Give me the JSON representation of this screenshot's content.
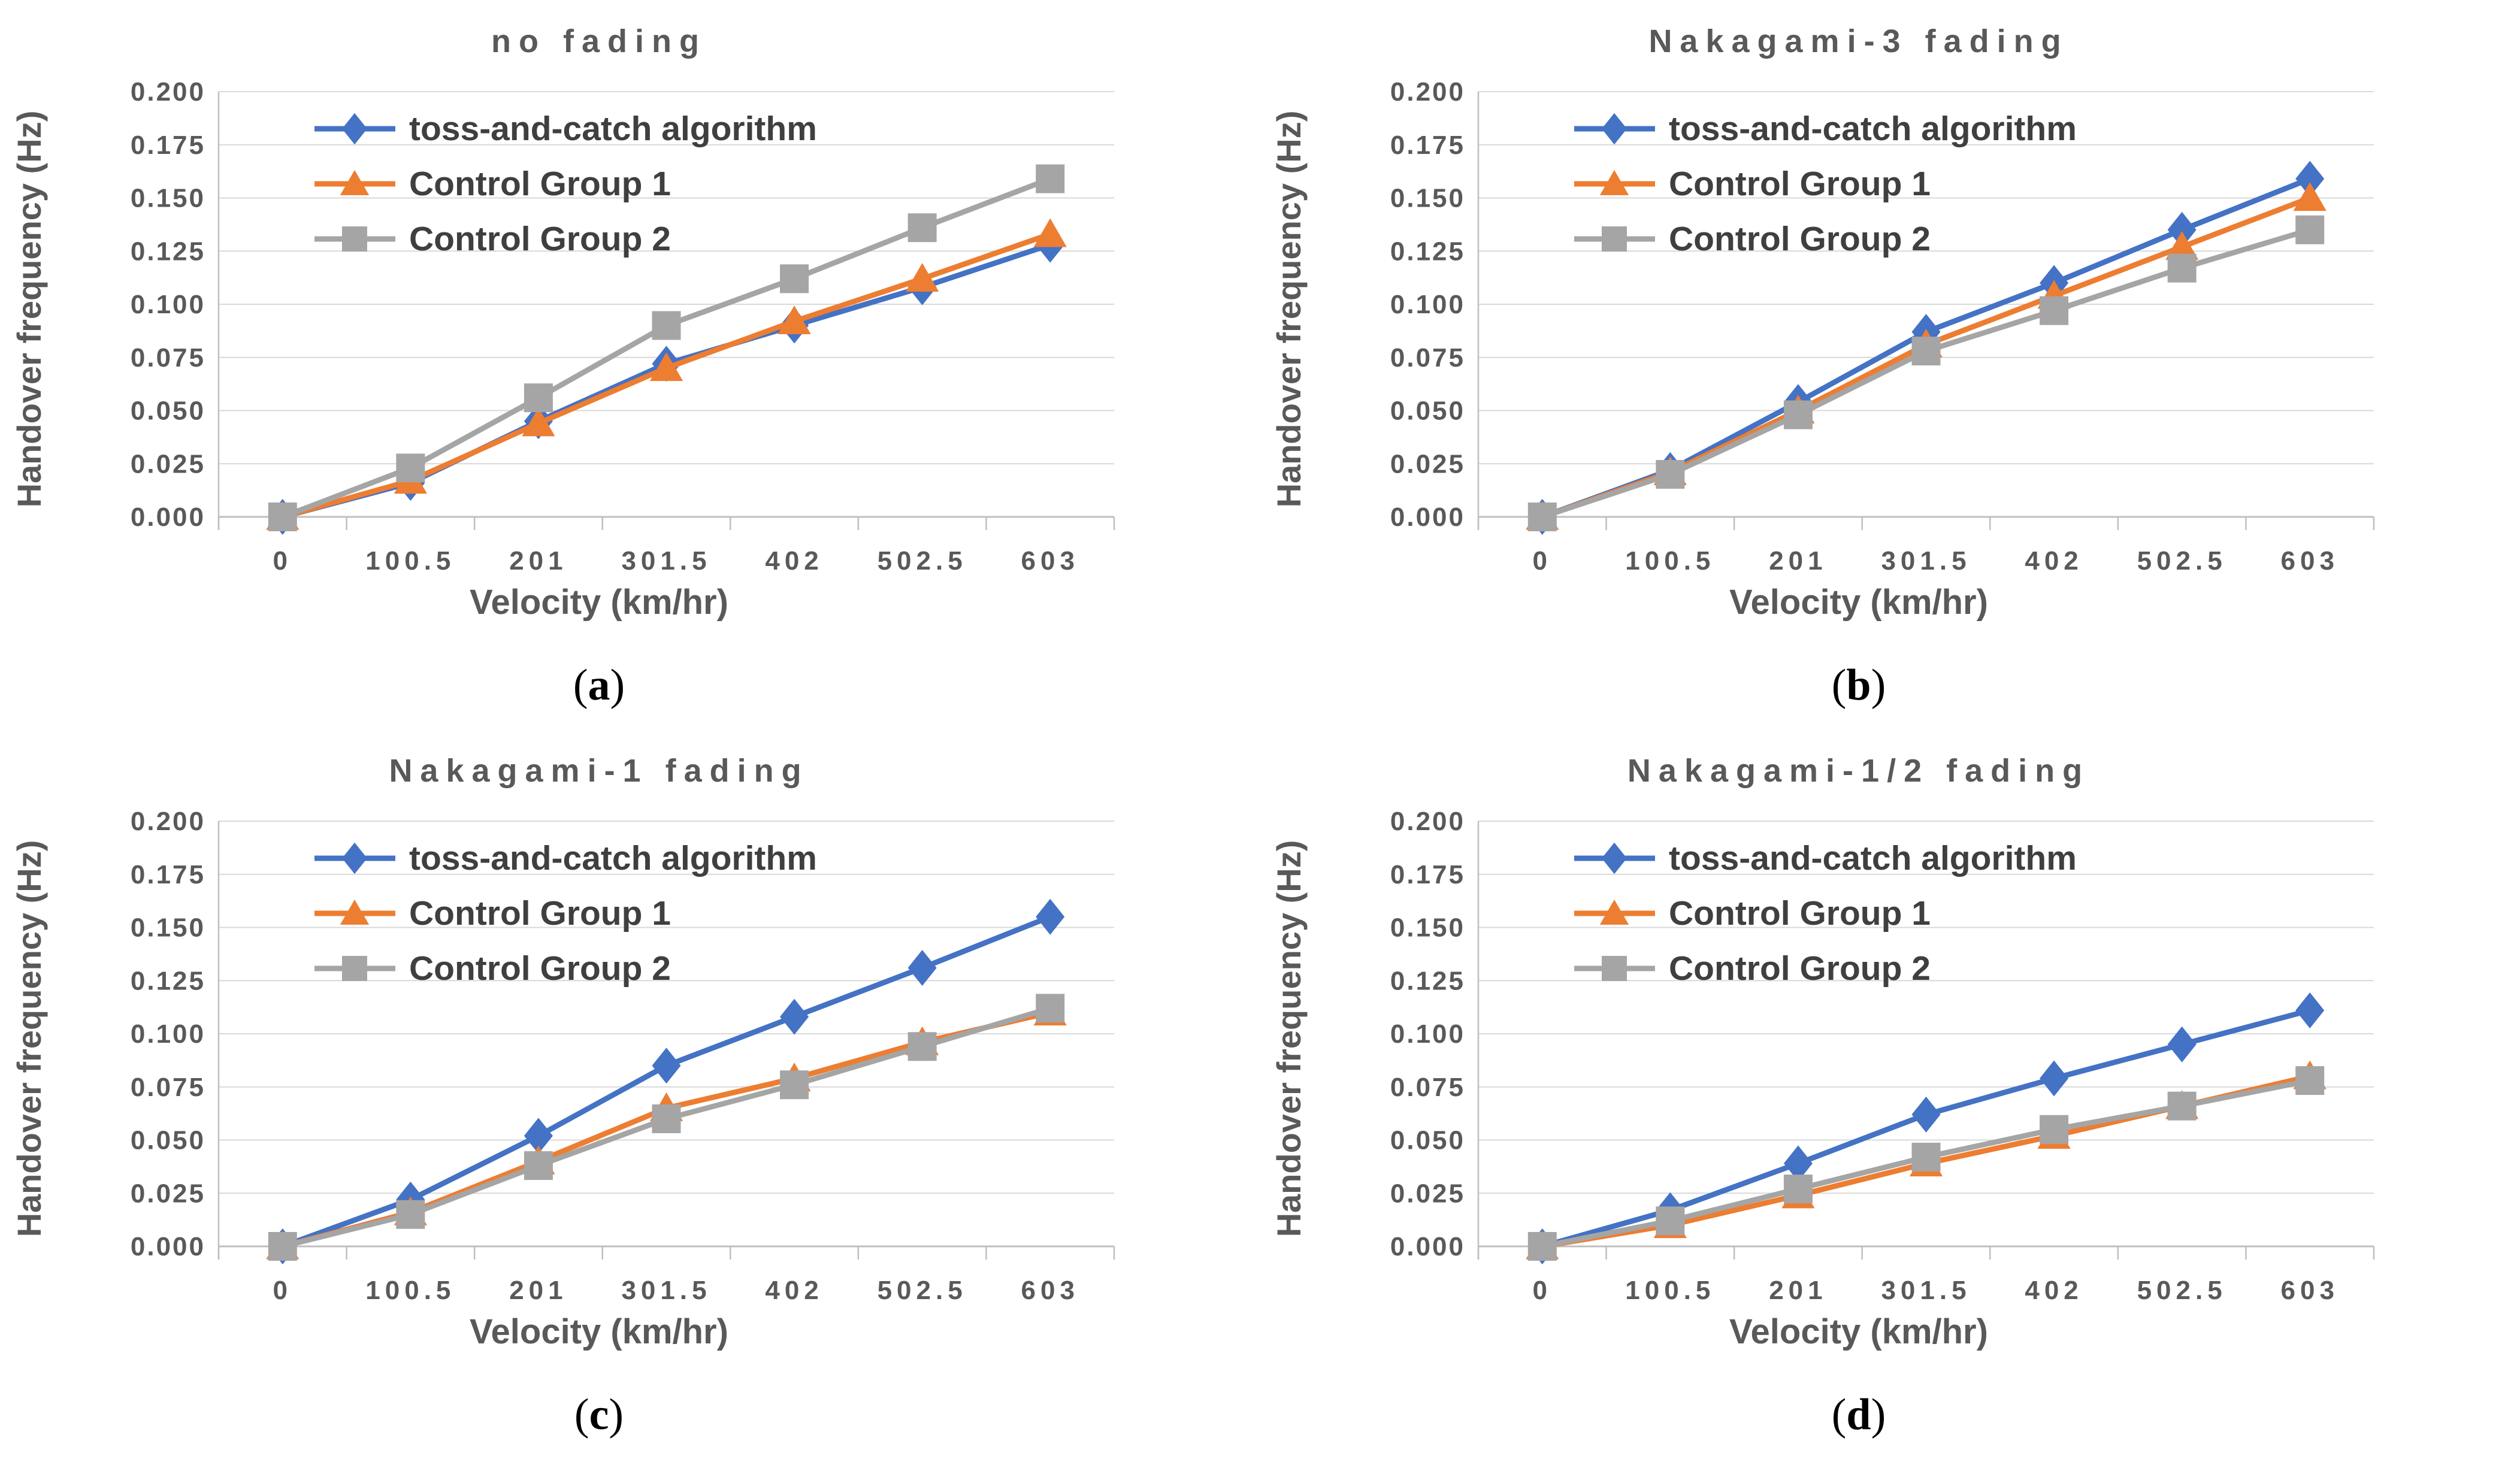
{
  "page": {
    "background": "#FFFFFF",
    "description_colors": {
      "title_text": "#595959",
      "axis_label_text": "#595959",
      "tick_text": "#595959",
      "legend_text": "#3F3F3F",
      "gridline": "#D9D9D9",
      "axis_line": "#BFBFBF",
      "caption_text": "#000000"
    }
  },
  "chart_data": [
    {
      "type": "line",
      "title": "no fading",
      "xlabel": "Velocity (km/hr)",
      "ylabel": "Handover frequency (Hz)",
      "categories": [
        "0",
        "100.5",
        "201",
        "301.5",
        "402",
        "502.5",
        "603"
      ],
      "ylim": [
        0,
        0.2
      ],
      "ytick_step": 0.025,
      "ytick_decimals": 3,
      "grid": "horizontal",
      "legend_position": "inside-top-left",
      "series": [
        {
          "name": "toss-and-catch algorithm",
          "color": "#4472C4",
          "marker": "diamond",
          "values": [
            0.0,
            0.016,
            0.045,
            0.072,
            0.09,
            0.108,
            0.128
          ]
        },
        {
          "name": "Control Group 1",
          "color": "#ED7D31",
          "marker": "triangle",
          "values": [
            0.0,
            0.017,
            0.044,
            0.07,
            0.092,
            0.112,
            0.133
          ]
        },
        {
          "name": "Control Group 2",
          "color": "#A5A5A5",
          "marker": "square",
          "values": [
            0.0,
            0.023,
            0.056,
            0.09,
            0.112,
            0.136,
            0.159
          ]
        }
      ],
      "caption": {
        "open": "(",
        "letter": "a",
        "close": ")"
      }
    },
    {
      "type": "line",
      "title": "Nakagami-3 fading",
      "xlabel": "Velocity (km/hr)",
      "ylabel": "Handover frequency (Hz)",
      "categories": [
        "0",
        "100.5",
        "201",
        "301.5",
        "402",
        "502.5",
        "603"
      ],
      "ylim": [
        0,
        0.2
      ],
      "ytick_step": 0.025,
      "ytick_decimals": 3,
      "grid": "horizontal",
      "legend_position": "inside-top-left",
      "series": [
        {
          "name": "toss-and-catch algorithm",
          "color": "#4472C4",
          "marker": "diamond",
          "values": [
            0.0,
            0.022,
            0.054,
            0.087,
            0.11,
            0.135,
            0.159
          ]
        },
        {
          "name": "Control Group 1",
          "color": "#ED7D31",
          "marker": "triangle",
          "values": [
            0.0,
            0.021,
            0.05,
            0.081,
            0.104,
            0.127,
            0.15
          ]
        },
        {
          "name": "Control Group 2",
          "color": "#A5A5A5",
          "marker": "square",
          "values": [
            0.0,
            0.02,
            0.048,
            0.078,
            0.097,
            0.117,
            0.135
          ]
        }
      ],
      "caption": {
        "open": "(",
        "letter": "b",
        "close": ")"
      }
    },
    {
      "type": "line",
      "title": "Nakagami-1 fading",
      "xlabel": "Velocity (km/hr)",
      "ylabel": "Handover frequency (Hz)",
      "categories": [
        "0",
        "100.5",
        "201",
        "301.5",
        "402",
        "502.5",
        "603"
      ],
      "ylim": [
        0,
        0.2
      ],
      "ytick_step": 0.025,
      "ytick_decimals": 3,
      "grid": "horizontal",
      "legend_position": "inside-top-left",
      "series": [
        {
          "name": "toss-and-catch algorithm",
          "color": "#4472C4",
          "marker": "diamond",
          "values": [
            0.0,
            0.022,
            0.052,
            0.085,
            0.108,
            0.131,
            0.155
          ]
        },
        {
          "name": "Control Group 1",
          "color": "#ED7D31",
          "marker": "triangle",
          "values": [
            0.0,
            0.016,
            0.04,
            0.065,
            0.079,
            0.096,
            0.11
          ]
        },
        {
          "name": "Control Group 2",
          "color": "#A5A5A5",
          "marker": "square",
          "values": [
            0.0,
            0.015,
            0.038,
            0.06,
            0.076,
            0.094,
            0.112
          ]
        }
      ],
      "caption": {
        "open": "(",
        "letter": "c",
        "close": ")"
      }
    },
    {
      "type": "line",
      "title": "Nakagami-1/2 fading",
      "xlabel": "Velocity (km/hr)",
      "ylabel": "Handover frequency (Hz)",
      "categories": [
        "0",
        "100.5",
        "201",
        "301.5",
        "402",
        "502.5",
        "603"
      ],
      "ylim": [
        0,
        0.2
      ],
      "ytick_step": 0.025,
      "ytick_decimals": 3,
      "grid": "horizontal",
      "legend_position": "inside-top-left",
      "series": [
        {
          "name": "toss-and-catch algorithm",
          "color": "#4472C4",
          "marker": "diamond",
          "values": [
            0.0,
            0.017,
            0.039,
            0.062,
            0.079,
            0.095,
            0.111
          ]
        },
        {
          "name": "Control Group 1",
          "color": "#ED7D31",
          "marker": "triangle",
          "values": [
            0.0,
            0.01,
            0.024,
            0.039,
            0.052,
            0.066,
            0.08
          ]
        },
        {
          "name": "Control Group 2",
          "color": "#A5A5A5",
          "marker": "square",
          "values": [
            0.0,
            0.012,
            0.027,
            0.042,
            0.055,
            0.066,
            0.078
          ]
        }
      ],
      "caption": {
        "open": "(",
        "letter": "d",
        "close": ")"
      }
    }
  ]
}
